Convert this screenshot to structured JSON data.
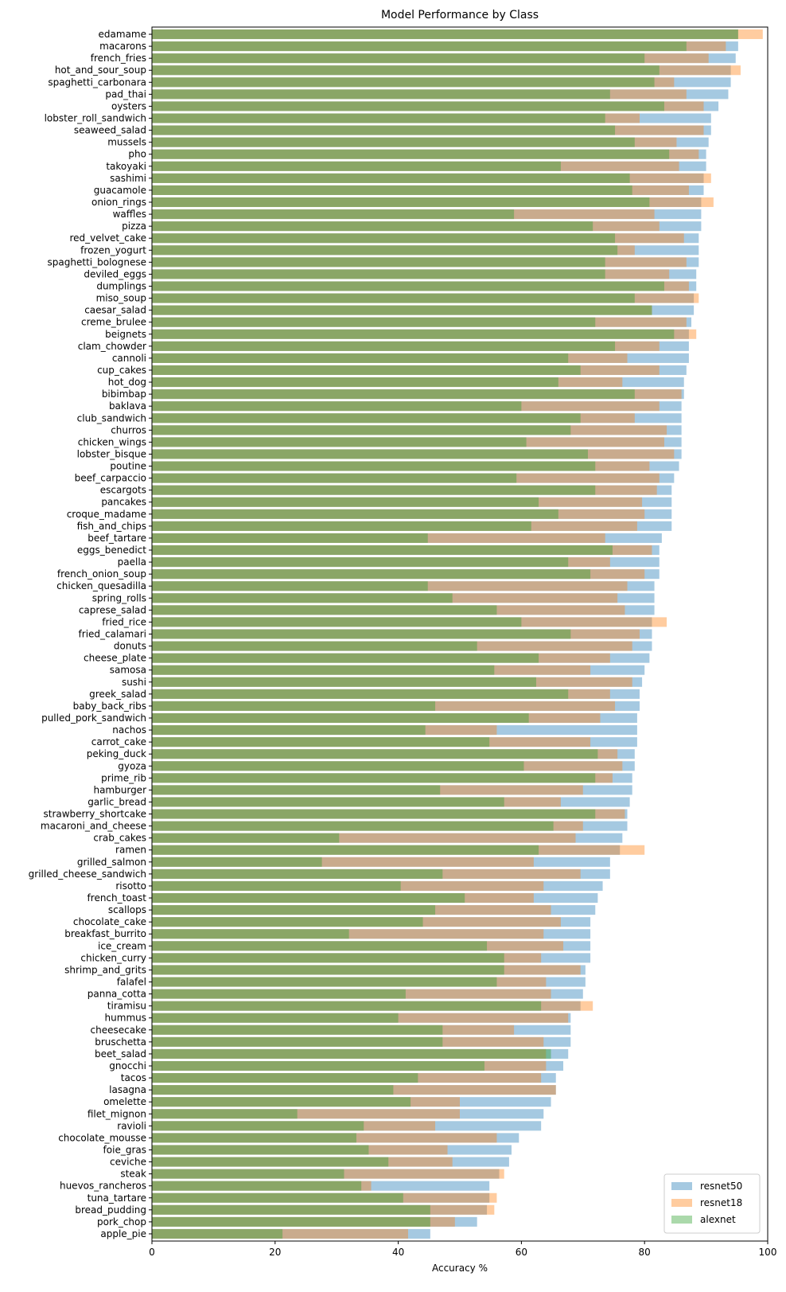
{
  "chart_data": {
    "type": "bar",
    "orientation": "horizontal",
    "title": "Model Performance by Class",
    "xlabel": "Accuracy %",
    "ylabel": "",
    "xlim": [
      0,
      100
    ],
    "xticks": [
      0,
      20,
      40,
      60,
      80,
      100
    ],
    "legend_position": "lower-right",
    "categories": [
      "edamame",
      "macarons",
      "french_fries",
      "hot_and_sour_soup",
      "spaghetti_carbonara",
      "pad_thai",
      "oysters",
      "lobster_roll_sandwich",
      "seaweed_salad",
      "mussels",
      "pho",
      "takoyaki",
      "sashimi",
      "guacamole",
      "onion_rings",
      "waffles",
      "pizza",
      "red_velvet_cake",
      "frozen_yogurt",
      "spaghetti_bolognese",
      "deviled_eggs",
      "dumplings",
      "miso_soup",
      "caesar_salad",
      "creme_brulee",
      "beignets",
      "clam_chowder",
      "cannoli",
      "cup_cakes",
      "hot_dog",
      "bibimbap",
      "baklava",
      "club_sandwich",
      "churros",
      "chicken_wings",
      "lobster_bisque",
      "poutine",
      "beef_carpaccio",
      "escargots",
      "pancakes",
      "croque_madame",
      "fish_and_chips",
      "beef_tartare",
      "eggs_benedict",
      "paella",
      "french_onion_soup",
      "chicken_quesadilla",
      "spring_rolls",
      "caprese_salad",
      "fried_rice",
      "fried_calamari",
      "donuts",
      "cheese_plate",
      "samosa",
      "sushi",
      "greek_salad",
      "baby_back_ribs",
      "pulled_pork_sandwich",
      "nachos",
      "carrot_cake",
      "peking_duck",
      "gyoza",
      "prime_rib",
      "hamburger",
      "garlic_bread",
      "strawberry_shortcake",
      "macaroni_and_cheese",
      "crab_cakes",
      "ramen",
      "grilled_salmon",
      "grilled_cheese_sandwich",
      "risotto",
      "french_toast",
      "scallops",
      "chocolate_cake",
      "breakfast_burrito",
      "ice_cream",
      "chicken_curry",
      "shrimp_and_grits",
      "falafel",
      "panna_cotta",
      "tiramisu",
      "hummus",
      "cheesecake",
      "bruschetta",
      "beet_salad",
      "gnocchi",
      "tacos",
      "lasagna",
      "omelette",
      "filet_mignon",
      "ravioli",
      "chocolate_mousse",
      "foie_gras",
      "ceviche",
      "steak",
      "huevos_rancheros",
      "tuna_tartare",
      "bread_pudding",
      "pork_chop",
      "apple_pie"
    ],
    "series": [
      {
        "name": "resnet50",
        "color": "#1f77b4",
        "opacity": 0.4,
        "values": [
          95.2,
          95.2,
          94.8,
          94.0,
          94.0,
          93.6,
          92.0,
          90.8,
          90.8,
          90.4,
          90.0,
          90.0,
          89.6,
          89.6,
          89.2,
          89.2,
          89.2,
          88.8,
          88.8,
          88.8,
          88.4,
          88.4,
          88.0,
          88.0,
          87.6,
          87.2,
          87.2,
          87.2,
          86.8,
          86.4,
          86.4,
          86.0,
          86.0,
          86.0,
          86.0,
          86.0,
          85.6,
          84.8,
          84.4,
          84.4,
          84.4,
          84.4,
          82.8,
          82.4,
          82.4,
          82.4,
          81.6,
          81.6,
          81.6,
          81.2,
          81.2,
          81.2,
          80.8,
          80.0,
          79.6,
          79.2,
          79.2,
          78.8,
          78.8,
          78.8,
          78.4,
          78.4,
          78.0,
          78.0,
          77.6,
          77.2,
          77.2,
          76.4,
          76.0,
          74.4,
          74.4,
          73.2,
          72.4,
          72.0,
          71.2,
          71.2,
          71.2,
          71.2,
          70.4,
          70.4,
          70.0,
          69.6,
          68.0,
          68.0,
          68.0,
          67.6,
          66.8,
          65.6,
          65.6,
          64.8,
          63.6,
          63.2,
          59.6,
          58.4,
          58.0,
          56.4,
          54.8,
          54.8,
          54.4,
          52.8,
          45.2
        ]
      },
      {
        "name": "resnet18",
        "color": "#ff7f0e",
        "opacity": 0.4,
        "values": [
          99.2,
          93.2,
          90.4,
          95.6,
          84.8,
          86.8,
          89.6,
          79.2,
          89.6,
          85.2,
          88.8,
          85.6,
          90.8,
          87.2,
          91.2,
          81.6,
          82.4,
          86.4,
          78.4,
          86.8,
          84.0,
          87.2,
          88.8,
          81.2,
          86.8,
          88.4,
          82.4,
          77.2,
          82.4,
          76.4,
          86.0,
          82.4,
          78.4,
          83.6,
          83.2,
          84.8,
          80.8,
          82.4,
          82.0,
          79.6,
          80.0,
          78.8,
          73.6,
          81.2,
          74.4,
          80.0,
          77.2,
          75.6,
          76.8,
          83.6,
          79.2,
          78.0,
          74.4,
          71.2,
          78.0,
          74.4,
          75.2,
          72.8,
          56.0,
          71.2,
          75.6,
          76.4,
          74.8,
          70.0,
          66.4,
          76.8,
          70.0,
          68.8,
          80.0,
          62.0,
          69.6,
          63.6,
          62.0,
          64.8,
          66.4,
          63.6,
          66.8,
          63.2,
          69.6,
          64.0,
          64.8,
          71.6,
          67.6,
          58.8,
          63.6,
          64.0,
          64.0,
          63.2,
          65.6,
          50.0,
          50.0,
          46.0,
          56.0,
          48.0,
          48.8,
          57.2,
          35.6,
          56.0,
          55.6,
          49.2,
          41.6
        ]
      },
      {
        "name": "alexnet",
        "color": "#2ca02c",
        "opacity": 0.4,
        "values": [
          95.2,
          86.8,
          80.0,
          82.4,
          81.6,
          74.4,
          83.2,
          73.6,
          75.2,
          78.4,
          84.0,
          66.4,
          77.6,
          78.0,
          80.8,
          58.8,
          71.6,
          75.2,
          75.6,
          73.6,
          73.6,
          83.2,
          78.4,
          81.2,
          72.0,
          84.8,
          75.2,
          67.6,
          69.6,
          66.0,
          78.4,
          60.0,
          69.6,
          68.0,
          60.8,
          70.8,
          72.0,
          59.2,
          72.0,
          62.8,
          66.0,
          61.6,
          44.8,
          74.8,
          67.6,
          71.2,
          44.8,
          48.8,
          56.0,
          60.0,
          68.0,
          52.8,
          62.8,
          55.6,
          62.4,
          67.6,
          46.0,
          61.2,
          44.4,
          54.8,
          72.4,
          60.4,
          72.0,
          46.8,
          57.2,
          72.0,
          65.2,
          30.4,
          62.8,
          27.6,
          47.2,
          40.4,
          50.8,
          46.0,
          44.0,
          32.0,
          54.4,
          57.2,
          57.2,
          56.0,
          41.2,
          63.2,
          40.0,
          47.2,
          47.2,
          64.8,
          54.0,
          43.2,
          39.2,
          42.0,
          23.6,
          34.4,
          33.2,
          35.2,
          38.4,
          31.2,
          34.0,
          40.8,
          45.2,
          45.2,
          21.2
        ]
      }
    ]
  }
}
